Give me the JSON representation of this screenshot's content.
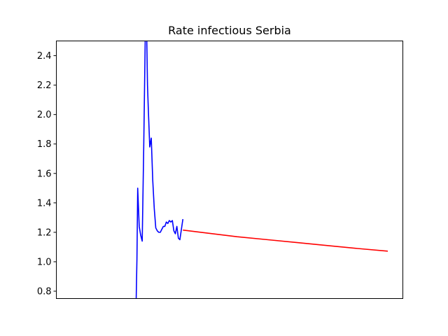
{
  "chart_data": {
    "type": "line",
    "title": "Rate infectious Serbia",
    "xlabel": "",
    "ylabel": "",
    "xlim": [
      0,
      230
    ],
    "ylim": [
      0.75,
      2.5
    ],
    "x_ticks_shown": false,
    "grid": false,
    "yticks": [
      0.8,
      1.0,
      1.2,
      1.4,
      1.6,
      1.8,
      2.0,
      2.2,
      2.4
    ],
    "ytick_labels": [
      "0.8",
      "1.0",
      "1.2",
      "1.4",
      "1.6",
      "1.8",
      "2.0",
      "2.2",
      "2.4"
    ],
    "series": [
      {
        "color": "#0000ff",
        "points": [
          [
            53,
            0.75
          ],
          [
            53.5,
            1.02
          ],
          [
            54,
            1.5
          ],
          [
            55,
            1.24
          ],
          [
            56,
            1.18
          ],
          [
            57,
            1.14
          ],
          [
            58,
            1.78
          ],
          [
            59,
            2.52
          ],
          [
            60,
            2.52
          ],
          [
            60.5,
            2.2
          ],
          [
            61,
            2.05
          ],
          [
            62,
            1.78
          ],
          [
            63,
            1.84
          ],
          [
            64,
            1.55
          ],
          [
            65,
            1.36
          ],
          [
            66,
            1.23
          ],
          [
            67,
            1.21
          ],
          [
            68,
            1.2
          ],
          [
            69,
            1.2
          ],
          [
            70,
            1.22
          ],
          [
            71,
            1.24
          ],
          [
            72,
            1.24
          ],
          [
            73,
            1.27
          ],
          [
            74,
            1.26
          ],
          [
            75,
            1.28
          ],
          [
            76,
            1.27
          ],
          [
            77,
            1.28
          ],
          [
            78,
            1.21
          ],
          [
            79,
            1.19
          ],
          [
            80,
            1.24
          ],
          [
            81,
            1.16
          ],
          [
            82,
            1.15
          ],
          [
            83,
            1.22
          ],
          [
            84,
            1.29
          ]
        ]
      },
      {
        "color": "#ff0000",
        "points": [
          [
            84,
            1.215
          ],
          [
            100,
            1.195
          ],
          [
            120,
            1.17
          ],
          [
            140,
            1.15
          ],
          [
            160,
            1.13
          ],
          [
            180,
            1.11
          ],
          [
            200,
            1.09
          ],
          [
            220,
            1.072
          ]
        ]
      }
    ]
  }
}
